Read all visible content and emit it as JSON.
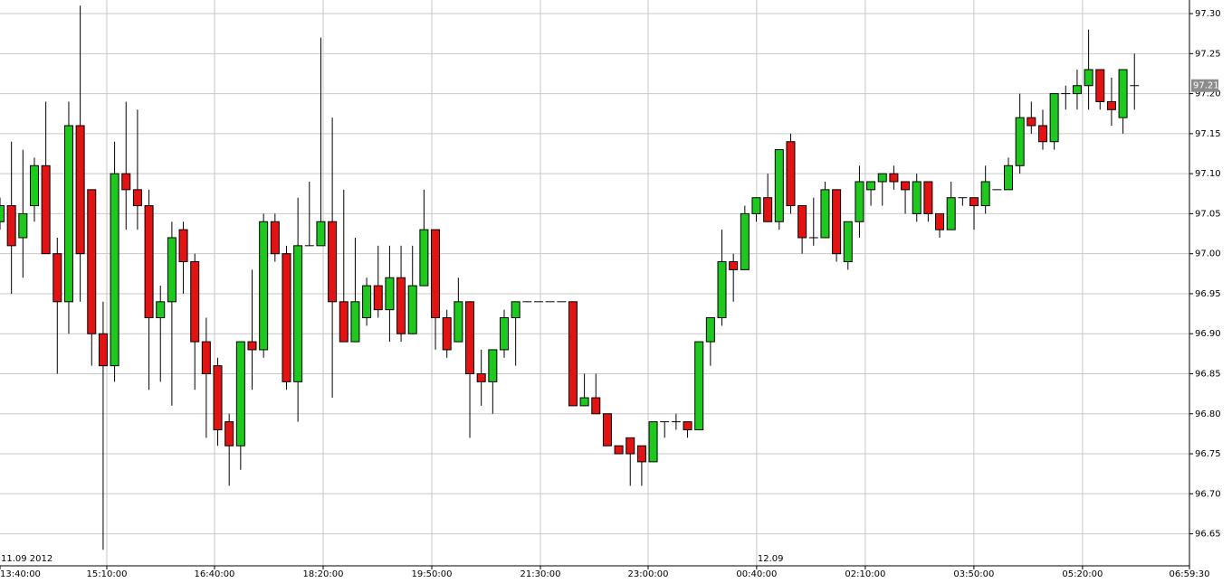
{
  "chart_data": {
    "type": "candlestick",
    "x": [
      0,
      1,
      2,
      3,
      4,
      5,
      6,
      7,
      8,
      9,
      10,
      11,
      12,
      13,
      14,
      15,
      16,
      17,
      18,
      19,
      20,
      21,
      22,
      23,
      24,
      25,
      26,
      27,
      28,
      29,
      30,
      31,
      32,
      33,
      34,
      35,
      36,
      37,
      38,
      39,
      40,
      41,
      42,
      43,
      44,
      45,
      46,
      47,
      48,
      49,
      50,
      51,
      52,
      53,
      54,
      55,
      56,
      57,
      58,
      59,
      60,
      61,
      62,
      63,
      64,
      65,
      66,
      67,
      68,
      69,
      70,
      71,
      72,
      73,
      74,
      75,
      76,
      77,
      78,
      79,
      80,
      81,
      82,
      83,
      84,
      85,
      86,
      87,
      88,
      89,
      90,
      91,
      92,
      93,
      94,
      95,
      96,
      97,
      98,
      99
    ],
    "open": [
      97.04,
      97.06,
      97.02,
      97.06,
      97.11,
      97.0,
      96.94,
      97.16,
      97.08,
      96.9,
      96.86,
      97.1,
      97.08,
      97.06,
      96.92,
      96.94,
      97.03,
      96.99,
      96.89,
      96.86,
      96.79,
      96.76,
      96.89,
      96.88,
      97.04,
      97.0,
      96.84,
      97.01,
      97.01,
      97.04,
      96.94,
      96.89,
      96.92,
      96.96,
      96.93,
      96.97,
      96.9,
      96.96,
      97.03,
      96.92,
      96.89,
      96.94,
      96.85,
      96.84,
      96.88,
      96.92,
      96.94,
      96.94,
      96.94,
      96.94,
      96.94,
      96.81,
      96.82,
      96.8,
      96.76,
      96.77,
      96.76,
      96.74,
      96.79,
      96.79,
      96.79,
      96.78,
      96.89,
      96.92,
      96.99,
      96.98,
      97.05,
      97.07,
      97.04,
      97.14,
      97.06,
      97.02,
      97.02,
      97.08,
      96.99,
      97.04,
      97.08,
      97.09,
      97.1,
      97.09,
      97.05,
      97.09,
      97.05,
      97.03,
      97.07,
      97.07,
      97.06,
      97.08,
      97.08,
      97.11,
      97.17,
      97.16,
      97.14,
      97.2,
      97.2,
      97.21,
      97.23,
      97.19,
      97.17,
      97.21
    ],
    "high": [
      97.07,
      97.14,
      97.13,
      97.12,
      97.19,
      97.02,
      97.19,
      97.31,
      97.08,
      96.94,
      97.14,
      97.19,
      97.18,
      97.08,
      96.96,
      97.04,
      97.04,
      97.0,
      96.92,
      96.87,
      96.8,
      96.89,
      96.98,
      97.05,
      97.05,
      97.01,
      97.07,
      97.09,
      97.27,
      97.17,
      97.08,
      97.02,
      96.97,
      97.01,
      97.01,
      97.01,
      97.01,
      97.08,
      97.03,
      96.93,
      96.97,
      96.94,
      96.88,
      96.88,
      96.93,
      96.94,
      96.94,
      96.94,
      96.94,
      96.94,
      96.94,
      96.85,
      96.85,
      96.8,
      96.76,
      96.77,
      96.76,
      96.79,
      96.79,
      96.8,
      96.79,
      96.89,
      96.92,
      97.03,
      97.0,
      97.06,
      97.07,
      97.1,
      97.13,
      97.15,
      97.06,
      97.07,
      97.09,
      97.08,
      97.04,
      97.11,
      97.09,
      97.1,
      97.11,
      97.09,
      97.1,
      97.09,
      97.05,
      97.09,
      97.07,
      97.07,
      97.11,
      97.08,
      97.12,
      97.2,
      97.19,
      97.18,
      97.2,
      97.21,
      97.23,
      97.28,
      97.23,
      97.22,
      97.23,
      97.25
    ],
    "low": [
      97.03,
      96.95,
      96.97,
      97.04,
      97.0,
      96.85,
      96.9,
      96.94,
      96.86,
      96.63,
      96.84,
      97.03,
      97.03,
      96.83,
      96.84,
      96.81,
      96.95,
      96.83,
      96.77,
      96.76,
      96.71,
      96.73,
      96.83,
      96.87,
      96.99,
      96.83,
      96.79,
      97.01,
      97.01,
      96.82,
      96.89,
      96.89,
      96.91,
      96.92,
      96.89,
      96.89,
      96.9,
      96.96,
      96.88,
      96.87,
      96.89,
      96.77,
      96.81,
      96.8,
      96.87,
      96.86,
      96.94,
      96.94,
      96.94,
      96.94,
      96.81,
      96.81,
      96.8,
      96.76,
      96.75,
      96.71,
      96.71,
      96.74,
      96.77,
      96.78,
      96.77,
      96.78,
      96.86,
      96.91,
      96.94,
      96.98,
      97.04,
      97.04,
      97.03,
      97.05,
      97.0,
      97.01,
      97.02,
      96.99,
      96.98,
      97.02,
      97.06,
      97.06,
      97.08,
      97.05,
      97.04,
      97.04,
      97.02,
      97.03,
      97.06,
      97.03,
      97.05,
      97.08,
      97.08,
      97.1,
      97.15,
      97.13,
      97.13,
      97.18,
      97.18,
      97.18,
      97.18,
      97.16,
      97.15,
      97.18
    ],
    "close": [
      97.06,
      97.01,
      97.05,
      97.11,
      97.0,
      96.94,
      97.16,
      97.0,
      96.9,
      96.86,
      97.1,
      97.08,
      97.06,
      96.92,
      96.94,
      97.02,
      96.99,
      96.89,
      96.85,
      96.78,
      96.76,
      96.89,
      96.88,
      97.04,
      97.0,
      96.84,
      97.01,
      97.01,
      97.04,
      96.94,
      96.89,
      96.94,
      96.96,
      96.93,
      96.97,
      96.9,
      96.96,
      97.03,
      96.92,
      96.88,
      96.94,
      96.85,
      96.84,
      96.88,
      96.92,
      96.94,
      96.94,
      96.94,
      96.94,
      96.94,
      96.81,
      96.82,
      96.8,
      96.76,
      96.75,
      96.75,
      96.74,
      96.79,
      96.79,
      96.79,
      96.78,
      96.89,
      96.92,
      96.99,
      96.98,
      97.05,
      97.07,
      97.04,
      97.13,
      97.06,
      97.02,
      97.02,
      97.08,
      97.0,
      97.04,
      97.09,
      97.09,
      97.1,
      97.09,
      97.08,
      97.09,
      97.05,
      97.03,
      97.07,
      97.07,
      97.06,
      97.09,
      97.08,
      97.11,
      97.17,
      97.16,
      97.14,
      97.2,
      97.2,
      97.21,
      97.23,
      97.19,
      97.18,
      97.23,
      97.21
    ],
    "up_color": "#1ec81e",
    "down_color": "#e21313",
    "outline_color": "#000000",
    "last_price": 97.21,
    "xlim": [
      0,
      103.8
    ],
    "xticks": [
      {
        "value": 0,
        "label": "13:40:00"
      },
      {
        "value": 9.32,
        "label": "15:10:00"
      },
      {
        "value": 18.72,
        "label": "16:40:00"
      },
      {
        "value": 28.2,
        "label": "18:20:00"
      },
      {
        "value": 37.68,
        "label": "19:50:00"
      },
      {
        "value": 47.16,
        "label": "21:30:00"
      },
      {
        "value": 56.56,
        "label": "23:00:00"
      },
      {
        "value": 66.03,
        "label": "00:40:00"
      },
      {
        "value": 75.51,
        "label": "02:10:00"
      },
      {
        "value": 84.99,
        "label": "03:50:00"
      },
      {
        "value": 94.47,
        "label": "05:20:00"
      },
      {
        "value": 103.8,
        "label": "06:59:30"
      }
    ],
    "date_labels": [
      {
        "value": 0,
        "label": "11.09 2012"
      },
      {
        "value": 66.03,
        "label": "12.09"
      }
    ],
    "ylim": [
      96.61,
      97.317
    ],
    "yticks": [
      96.65,
      {
        "value": 96.7,
        "label": "96.70"
      },
      96.75,
      {
        "value": 96.8,
        "label": "96.80"
      },
      96.85,
      {
        "value": 96.9,
        "label": "96.90"
      },
      96.95,
      {
        "value": 97.0,
        "label": "97.00"
      },
      97.05,
      {
        "value": 97.1,
        "label": "97.10"
      },
      97.15,
      {
        "value": 97.2,
        "label": "97.20"
      },
      97.25,
      {
        "value": 97.3,
        "label": "97.30"
      }
    ],
    "grid": true
  }
}
